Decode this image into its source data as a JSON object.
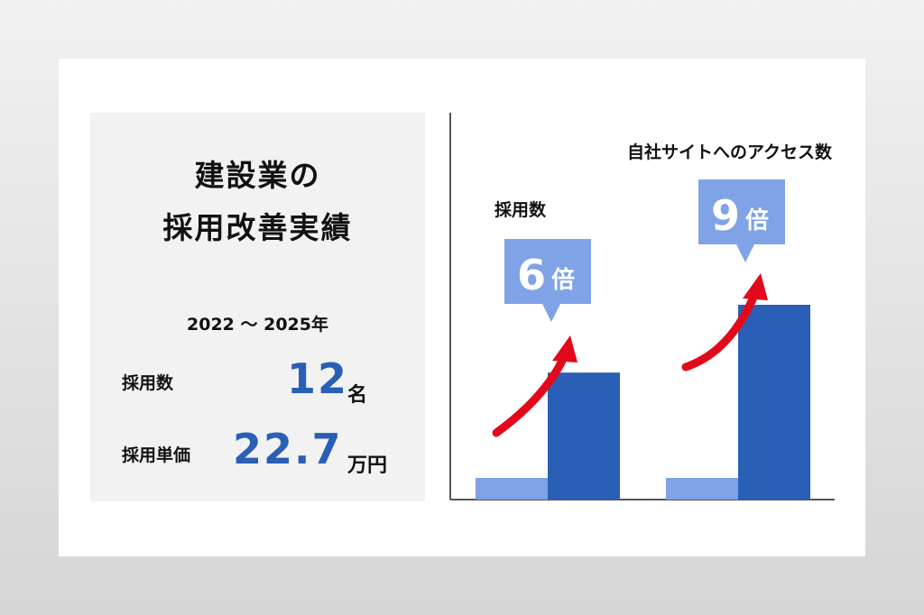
{
  "summary": {
    "title_line1": "建設業の",
    "title_line2": "採用改善実績",
    "period": "2022 〜 2025年",
    "metrics": [
      {
        "label": "採用数",
        "value": "12",
        "unit": "名"
      },
      {
        "label": "採用単価",
        "value": "22.7",
        "unit": "万円"
      }
    ]
  },
  "chart_data": {
    "type": "bar",
    "categories": [
      "採用数",
      "自社サイトへのアクセス数"
    ],
    "series": [
      {
        "values": [
          1,
          1
        ]
      },
      {
        "values": [
          6,
          9
        ]
      }
    ],
    "callouts": [
      {
        "number": "6",
        "unit": "倍"
      },
      {
        "number": "9",
        "unit": "倍"
      }
    ],
    "colors": {
      "before": "#7fa3e6",
      "after": "#2a5fb6",
      "callout": "#7fa3e6",
      "arrow": "#e3091b",
      "axis": "#555555"
    },
    "ylim": [
      0,
      10
    ],
    "grid": false,
    "legend": "none"
  }
}
